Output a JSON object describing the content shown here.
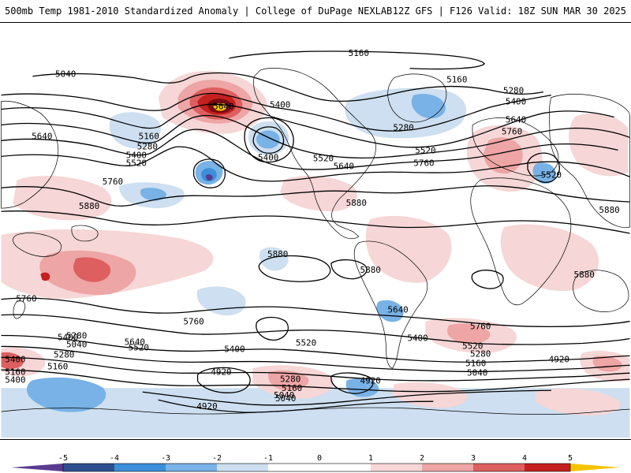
{
  "header": {
    "title_left": "500mb Temp 1981-2010 Standardized Anomaly | College of DuPage NEXLAB",
    "title_right": "12Z GFS | F126 Valid: 18Z SUN MAR 30 2025"
  },
  "colors": {
    "neg5": "#5a3a8f",
    "neg4": "#2f4f8f",
    "neg3": "#3c8fd8",
    "neg2": "#78b2e6",
    "neg1": "#cddff0",
    "neutral": "#ffffff",
    "pos1": "#f6d6d6",
    "pos2": "#eea5a5",
    "pos3": "#de5f5f",
    "pos4": "#c42020",
    "pos5": "#7a0a10",
    "extreme": "#f5c400",
    "contour": "#000000",
    "coast": "#000000"
  },
  "legend": {
    "ticks": [
      "-5",
      "-4",
      "-3",
      "-2",
      "-1",
      "0",
      "1",
      "2",
      "3",
      "4",
      "5"
    ]
  },
  "contour_labels": [
    "5160",
    "5040",
    "5640",
    "5280",
    "5400",
    "5160",
    "5280",
    "5400",
    "5520",
    "5640",
    "5760",
    "5880",
    "5880",
    "5880",
    "5880",
    "5760",
    "5640",
    "5760",
    "5520",
    "5400",
    "5280",
    "5040",
    "5520",
    "5400",
    "5280",
    "4920",
    "5160",
    "5040",
    "4920",
    "4920",
    "5400",
    "5160",
    "5640",
    "5520",
    "5640",
    "5760",
    "5880",
    "5880",
    "5160",
    "5280",
    "5400",
    "5520",
    "5640",
    "5760",
    "5520",
    "5400",
    "5280",
    "5160",
    "5040",
    "4920",
    "5160",
    "5400",
    "5040",
    "5280",
    "5400",
    "5520",
    "5760"
  ]
}
